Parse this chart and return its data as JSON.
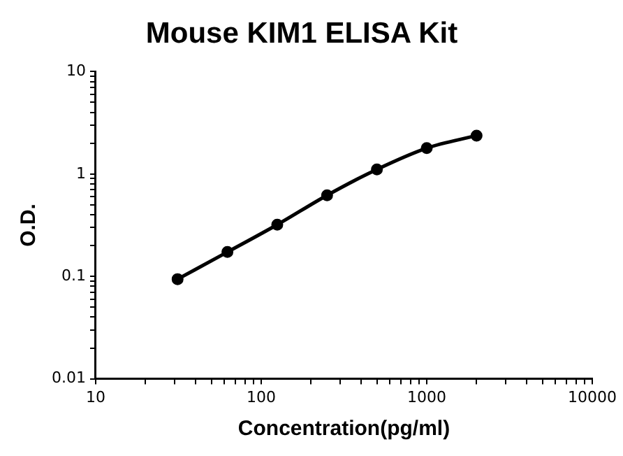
{
  "chart_data": {
    "type": "line",
    "title": "Mouse KIM1 ELISA Kit",
    "xlabel": "Concentration(pg/ml)",
    "ylabel": "O.D.",
    "x": [
      31.25,
      62.5,
      125,
      250,
      500,
      1000,
      2000
    ],
    "series": [
      {
        "color": "#000000",
        "values": [
          0.094,
          0.173,
          0.32,
          0.62,
          1.11,
          1.79,
          2.37
        ]
      }
    ],
    "log": "xy",
    "xlim": [
      10,
      10000
    ],
    "ylim": [
      0.01,
      10
    ],
    "xticks": [
      10,
      {
        "value": 20,
        "label": null
      },
      {
        "value": 30,
        "label": null
      },
      {
        "value": 40,
        "label": null
      },
      {
        "value": 50,
        "label": null
      },
      {
        "value": 60,
        "label": null
      },
      {
        "value": 70,
        "label": null
      },
      {
        "value": 80,
        "label": null
      },
      {
        "value": 90,
        "label": null
      },
      100,
      {
        "value": 200,
        "label": null
      },
      {
        "value": 300,
        "label": null
      },
      {
        "value": 400,
        "label": null
      },
      {
        "value": 500,
        "label": null
      },
      {
        "value": 600,
        "label": null
      },
      {
        "value": 700,
        "label": null
      },
      {
        "value": 800,
        "label": null
      },
      {
        "value": 900,
        "label": null
      },
      1000,
      {
        "value": 2000,
        "label": null
      },
      {
        "value": 3000,
        "label": null
      },
      {
        "value": 4000,
        "label": null
      },
      {
        "value": 5000,
        "label": null
      },
      {
        "value": 6000,
        "label": null
      },
      {
        "value": 7000,
        "label": null
      },
      {
        "value": 8000,
        "label": null
      },
      {
        "value": 9000,
        "label": null
      },
      10000
    ],
    "yticks": [
      0.01,
      {
        "value": 0.02,
        "label": null
      },
      {
        "value": 0.03,
        "label": null
      },
      {
        "value": 0.04,
        "label": null
      },
      {
        "value": 0.05,
        "label": null
      },
      {
        "value": 0.06,
        "label": null
      },
      {
        "value": 0.07,
        "label": null
      },
      {
        "value": 0.08,
        "label": null
      },
      {
        "value": 0.09,
        "label": null
      },
      0.1,
      {
        "value": 0.2,
        "label": null
      },
      {
        "value": 0.3,
        "label": null
      },
      {
        "value": 0.4,
        "label": null
      },
      {
        "value": 0.5,
        "label": null
      },
      {
        "value": 0.6,
        "label": null
      },
      {
        "value": 0.7,
        "label": null
      },
      {
        "value": 0.8,
        "label": null
      },
      {
        "value": 0.9,
        "label": null
      },
      1,
      {
        "value": 2,
        "label": null
      },
      {
        "value": 3,
        "label": null
      },
      {
        "value": 4,
        "label": null
      },
      {
        "value": 5,
        "label": null
      },
      {
        "value": 6,
        "label": null
      },
      {
        "value": 7,
        "label": null
      },
      {
        "value": 8,
        "label": null
      },
      {
        "value": 9,
        "label": null
      },
      10
    ],
    "grid": false,
    "legend": false,
    "marker": "circle",
    "line_style": "solid"
  }
}
